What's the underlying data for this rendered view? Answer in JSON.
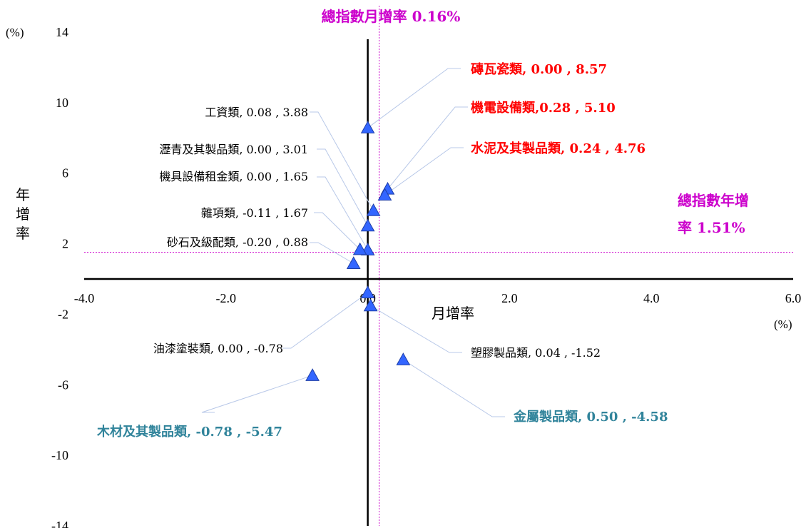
{
  "chart_data": {
    "type": "scatter",
    "title": "總指數月增率 0.16%",
    "xlabel": "月增率",
    "ylabel": "年增率",
    "x_unit": "(%)",
    "y_unit": "(%)",
    "xlim": [
      -4.0,
      6.0
    ],
    "ylim": [
      -14,
      14
    ],
    "x_ticks": [
      "-4.0",
      "-2.0",
      "0.0",
      "2.0",
      "4.0",
      "6.0"
    ],
    "y_ticks": [
      "14",
      "10",
      "6",
      "2",
      "-2",
      "-6",
      "-10",
      "-14"
    ],
    "reference_lines": {
      "monthly_total": 0.16,
      "annual_total": 1.51,
      "annual_label_line1": "總指數年增",
      "annual_label_line2": "率 1.51%"
    },
    "points": [
      {
        "label": "磚瓦瓷類, 0.00 , 8.57",
        "x": 0.0,
        "y": 8.57
      },
      {
        "label": "機電設備類,0.28 , 5.10",
        "x": 0.28,
        "y": 5.1
      },
      {
        "label": "水泥及其製品類, 0.24 , 4.76",
        "x": 0.24,
        "y": 4.76
      },
      {
        "label": "工資類, 0.08 , 3.88",
        "x": 0.08,
        "y": 3.88
      },
      {
        "label": "瀝青及其製品類, 0.00 , 3.01",
        "x": 0.0,
        "y": 3.01
      },
      {
        "label": "機具設備租金類, 0.00 , 1.65",
        "x": 0.0,
        "y": 1.65
      },
      {
        "label": "雜項類, -0.11 , 1.67",
        "x": -0.11,
        "y": 1.67
      },
      {
        "label": "砂石及級配類, -0.20 , 0.88",
        "x": -0.2,
        "y": 0.88
      },
      {
        "label": "油漆塗裝類, 0.00 , -0.78",
        "x": 0.0,
        "y": -0.78
      },
      {
        "label": "塑膠製品類, 0.04 , -1.52",
        "x": 0.04,
        "y": -1.52
      },
      {
        "label": "金屬製品類, 0.50 , -4.58",
        "x": 0.5,
        "y": -4.58
      },
      {
        "label": "木材及其製品類, -0.78 , -5.47",
        "x": -0.78,
        "y": -5.47
      }
    ],
    "colors": {
      "marker_fill": "#3366ff",
      "marker_stroke": "#1f3fa8",
      "highlight_red": "#ff0000",
      "highlight_teal": "#31849b",
      "reference_magenta": "#cc00cc",
      "leader_line": "#b8c8e8"
    }
  }
}
